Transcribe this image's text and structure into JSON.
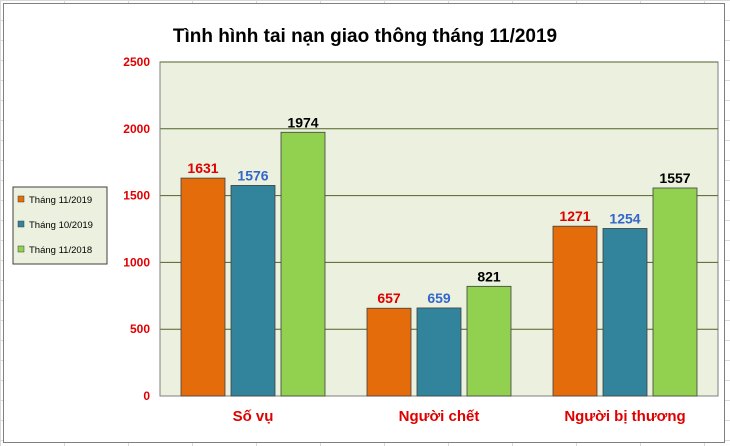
{
  "chart_data": {
    "type": "bar",
    "title": "Tình hình tai nạn giao thông tháng 11/2019",
    "categories": [
      "Số vụ",
      "Người chết",
      "Người bị thương"
    ],
    "series": [
      {
        "name": "Tháng 11/2019",
        "values": [
          1631,
          657,
          1271
        ],
        "color": "#e46c0a",
        "label_color": "#e00000"
      },
      {
        "name": "Tháng 10/2019",
        "values": [
          1576,
          659,
          1254
        ],
        "color": "#31849b",
        "label_color": "#3366cc"
      },
      {
        "name": "Tháng 11/2018",
        "values": [
          1974,
          821,
          1557
        ],
        "color": "#92d050",
        "label_color": "#000000"
      }
    ],
    "yticks": [
      0,
      500,
      1000,
      1500,
      2000,
      2500
    ],
    "ylim": [
      0,
      2500
    ],
    "grid": true,
    "legend_position": "left",
    "plot_background": "#ebf1de",
    "grid_color": "#4f6228"
  }
}
